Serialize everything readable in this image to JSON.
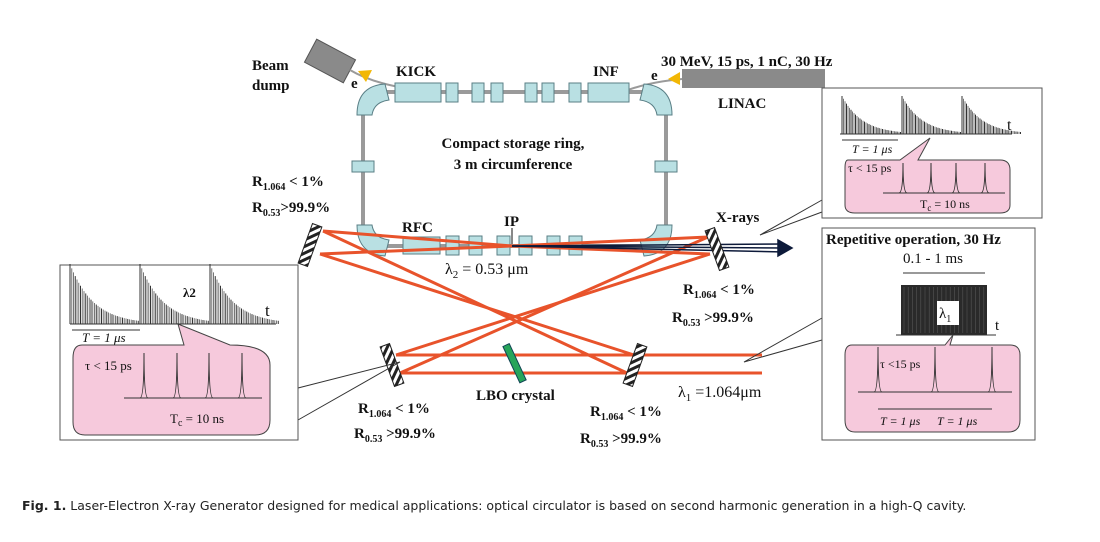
{
  "labels": {
    "beam": "Beam",
    "dump": "dump",
    "e_left": "e",
    "e_right": "e",
    "kick": "KICK",
    "inf": "INF",
    "linac_params": "30 MeV, 15 ps, 1 nC, 30 Hz",
    "linac": "LINAC",
    "ring_line1": "Compact storage ring,",
    "ring_line2": "3 m circumference",
    "rfc": "RFC",
    "ip": "IP",
    "xrays": "X-rays",
    "lambda2": "λ",
    "lambda2_sub": "2",
    "lambda2_val": " = 0.53 μm",
    "lambda1": "λ",
    "lambda1_sub": "1",
    "lambda1_val": " =1.064μm",
    "lbo": "LBO crystal"
  },
  "mirror_spec": {
    "r": "R",
    "sub_ir": "1.064",
    "ir_val": " < 1%",
    "sub_green": "0.53",
    "green_val": ">99.9%",
    "green_val_spaced": " >99.9%"
  },
  "inset_pulse_train": {
    "t": "t",
    "period": "T = 1 μs",
    "tau": "τ < 15 ps",
    "tc": "T",
    "tc_sub": "c",
    "tc_val": " = 10 ns",
    "lambda": "λ2"
  },
  "inset_repetitive": {
    "title": "Repetitive operation, 30 Hz",
    "duration": "0.1 - 1 ms",
    "lambda": "λ",
    "lambda_sub": "1",
    "t": "t",
    "tau": "τ <15 ps",
    "period1": "T = 1 μs",
    "period2": "T = 1 μs"
  },
  "caption": {
    "label": "Fig. 1.",
    "text": " Laser-Electron X-ray Generator designed for medical applications: optical circulator is based on second harmonic generation in a high-Q cavity."
  },
  "colors": {
    "laser": "#e8532b",
    "magnet": "#b9e0e3",
    "magnet_stroke": "#5a7f86",
    "pipe": "#9a9a9a",
    "linac": "#8a8a8a",
    "crystal": "#27a55a",
    "callout": "#f6c9dc",
    "xray": "#0d1a3a"
  }
}
